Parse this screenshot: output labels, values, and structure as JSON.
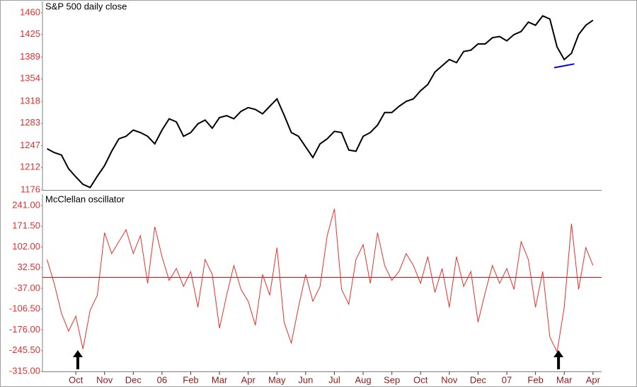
{
  "chart_data": [
    {
      "type": "line",
      "title": "S&P 500 daily close",
      "x": [
        -1.0,
        -0.75,
        -0.5,
        -0.25,
        0,
        0.25,
        0.5,
        0.75,
        1.0,
        1.25,
        1.5,
        1.75,
        2.0,
        2.25,
        2.5,
        2.75,
        3.0,
        3.25,
        3.5,
        3.75,
        4.0,
        4.25,
        4.5,
        4.75,
        5.0,
        5.25,
        5.5,
        5.75,
        6.0,
        6.25,
        6.5,
        6.75,
        7.0,
        7.25,
        7.5,
        7.75,
        8.0,
        8.25,
        8.5,
        8.75,
        9.0,
        9.25,
        9.5,
        9.75,
        10.0,
        10.25,
        10.5,
        10.75,
        11.0,
        11.25,
        11.5,
        11.75,
        12.0,
        12.25,
        12.5,
        12.75,
        13.0,
        13.25,
        13.5,
        13.75,
        14.0,
        14.25,
        14.5,
        14.75,
        15.0,
        15.25,
        15.5,
        15.75,
        16.0,
        16.25,
        16.5,
        16.75,
        17.0,
        17.25,
        17.5,
        17.75,
        18.0
      ],
      "series": [
        {
          "color": "#000000",
          "values": [
            1242,
            1236,
            1232,
            1210,
            1197,
            1185,
            1180,
            1198,
            1215,
            1238,
            1258,
            1262,
            1272,
            1268,
            1262,
            1250,
            1272,
            1290,
            1285,
            1262,
            1268,
            1282,
            1288,
            1275,
            1292,
            1295,
            1290,
            1302,
            1308,
            1305,
            1298,
            1310,
            1322,
            1296,
            1268,
            1262,
            1245,
            1228,
            1250,
            1258,
            1270,
            1268,
            1240,
            1238,
            1262,
            1268,
            1280,
            1300,
            1300,
            1310,
            1318,
            1322,
            1335,
            1345,
            1365,
            1375,
            1385,
            1380,
            1398,
            1400,
            1410,
            1410,
            1420,
            1422,
            1415,
            1425,
            1430,
            1445,
            1440,
            1455,
            1450,
            1405,
            1385,
            1395,
            1425,
            1440,
            1448
          ]
        }
      ],
      "trendline": {
        "color": "#0000ff",
        "x": [
          16.65,
          17.35
        ],
        "values": [
          1372,
          1378
        ]
      },
      "xlim": [
        -1.16,
        18.3
      ],
      "ylim": [
        1176,
        1460
      ],
      "yticks": [
        1460,
        1425,
        1389,
        1354,
        1318,
        1283,
        1247,
        1212,
        1176
      ]
    },
    {
      "type": "line",
      "title": "McClellan oscillator",
      "x": [
        -1.0,
        -0.75,
        -0.5,
        -0.25,
        0,
        0.25,
        0.5,
        0.75,
        1.0,
        1.25,
        1.5,
        1.75,
        2.0,
        2.25,
        2.5,
        2.75,
        3.0,
        3.25,
        3.5,
        3.75,
        4.0,
        4.25,
        4.5,
        4.75,
        5.0,
        5.25,
        5.5,
        5.75,
        6.0,
        6.25,
        6.5,
        6.75,
        7.0,
        7.25,
        7.5,
        7.75,
        8.0,
        8.25,
        8.5,
        8.75,
        9.0,
        9.25,
        9.5,
        9.75,
        10.0,
        10.25,
        10.5,
        10.75,
        11.0,
        11.25,
        11.5,
        11.75,
        12.0,
        12.25,
        12.5,
        12.75,
        13.0,
        13.25,
        13.5,
        13.75,
        14.0,
        14.25,
        14.5,
        14.75,
        15.0,
        15.25,
        15.5,
        15.75,
        16.0,
        16.25,
        16.5,
        16.75,
        17.0,
        17.25,
        17.5,
        17.75,
        18.0
      ],
      "series": [
        {
          "color": "#e8302a",
          "values": [
            60,
            -20,
            -120,
            -180,
            -130,
            -240,
            -110,
            -60,
            150,
            80,
            120,
            160,
            80,
            140,
            -20,
            170,
            70,
            -10,
            30,
            -30,
            20,
            -100,
            60,
            10,
            -170,
            -60,
            40,
            -40,
            -80,
            -160,
            10,
            -60,
            100,
            -150,
            -220,
            -100,
            10,
            -80,
            -30,
            140,
            230,
            -40,
            -90,
            60,
            110,
            -20,
            150,
            40,
            -10,
            20,
            80,
            40,
            -20,
            70,
            -50,
            30,
            -100,
            70,
            -30,
            20,
            -150,
            -50,
            40,
            -20,
            30,
            -40,
            120,
            60,
            -100,
            20,
            -200,
            -250,
            -100,
            180,
            -40,
            100,
            40
          ]
        }
      ],
      "arrows": [
        0.07,
        16.8
      ],
      "xlim": [
        -1.16,
        18.3
      ],
      "ylim": [
        -315,
        241
      ],
      "yticks": [
        {
          "value": 241,
          "label": "241.00"
        },
        {
          "value": 171.5,
          "label": "171.50"
        },
        {
          "value": 102,
          "label": "102.00"
        },
        {
          "value": 32.5,
          "label": "32.50"
        },
        {
          "value": -37,
          "label": "-37.00"
        },
        {
          "value": -106.5,
          "label": "-106.50"
        },
        {
          "value": -176,
          "label": "-176.00"
        },
        {
          "value": -245.5,
          "label": "-245.50"
        },
        {
          "value": -315,
          "label": "-315.00"
        }
      ],
      "xticks": [
        {
          "value": 0,
          "label": "Oct"
        },
        {
          "value": 1,
          "label": "Nov"
        },
        {
          "value": 2,
          "label": "Dec"
        },
        {
          "value": 3,
          "label": "06"
        },
        {
          "value": 4,
          "label": "Feb"
        },
        {
          "value": 5,
          "label": "Mar"
        },
        {
          "value": 6,
          "label": "Apr"
        },
        {
          "value": 7,
          "label": "May"
        },
        {
          "value": 8,
          "label": "Jun"
        },
        {
          "value": 9,
          "label": "Jul"
        },
        {
          "value": 10,
          "label": "Aug"
        },
        {
          "value": 11,
          "label": "Sep"
        },
        {
          "value": 12,
          "label": "Oct"
        },
        {
          "value": 13,
          "label": "Nov"
        },
        {
          "value": 14,
          "label": "Dec"
        },
        {
          "value": 15,
          "label": "07"
        },
        {
          "value": 16,
          "label": "Feb"
        },
        {
          "value": 17,
          "label": "Mar"
        },
        {
          "value": 18,
          "label": "Apr"
        }
      ]
    }
  ]
}
